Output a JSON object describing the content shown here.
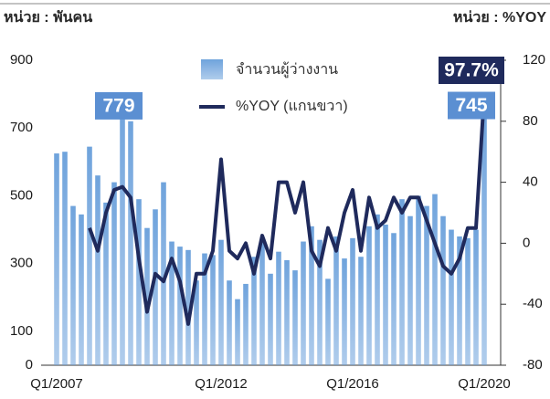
{
  "chart_data": {
    "type": "bar-line",
    "y_label": "หน่วย : พันคน",
    "y2_label": "หน่วย : %YOY",
    "categories": [
      "Q1/2007",
      null,
      null,
      null,
      null,
      null,
      null,
      null,
      null,
      null,
      null,
      null,
      null,
      null,
      null,
      null,
      null,
      null,
      null,
      null,
      "Q1/2012",
      null,
      null,
      null,
      null,
      null,
      null,
      null,
      null,
      null,
      null,
      null,
      null,
      null,
      null,
      null,
      "Q1/2016",
      null,
      null,
      null,
      null,
      null,
      null,
      null,
      null,
      null,
      null,
      null,
      null,
      null,
      null,
      null,
      "Q1/2020"
    ],
    "series": [
      {
        "name": "จำนวนผู้ว่างงาน",
        "type": "bar",
        "color": "#6fa3dc",
        "axis": "y",
        "values": [
          625,
          630,
          470,
          445,
          645,
          560,
          480,
          540,
          779,
          720,
          490,
          405,
          460,
          540,
          365,
          350,
          340,
          250,
          330,
          325,
          370,
          250,
          195,
          240,
          320,
          370,
          270,
          335,
          310,
          280,
          365,
          410,
          370,
          255,
          380,
          315,
          375,
          320,
          410,
          445,
          415,
          390,
          490,
          440,
          500,
          470,
          505,
          440,
          400,
          380,
          375,
          400,
          745
        ],
        "value_labels": [
          null,
          null,
          null,
          null,
          null,
          null,
          null,
          null,
          "779",
          null,
          null,
          null,
          null,
          null,
          null,
          null,
          null,
          null,
          null,
          null,
          null,
          null,
          null,
          null,
          null,
          null,
          null,
          null,
          null,
          null,
          null,
          null,
          null,
          null,
          null,
          null,
          null,
          null,
          null,
          null,
          null,
          null,
          null,
          null,
          null,
          null,
          null,
          null,
          null,
          null,
          null,
          null,
          "745"
        ]
      },
      {
        "name": "%YOY (แกนขวา)",
        "type": "line",
        "color": "#1f2a5c",
        "axis": "y2",
        "values": [
          null,
          null,
          null,
          null,
          10,
          -5,
          20,
          35,
          37,
          30,
          -10,
          -45,
          -20,
          -25,
          -10,
          -25,
          -53,
          -20,
          -20,
          -5,
          55,
          -5,
          -10,
          0,
          -20,
          5,
          -10,
          40,
          40,
          20,
          40,
          -5,
          -15,
          10,
          -5,
          20,
          35,
          -5,
          30,
          10,
          15,
          30,
          20,
          30,
          30,
          15,
          0,
          -15,
          -20,
          -10,
          10,
          10,
          97.7
        ],
        "value_labels": [
          null,
          null,
          null,
          null,
          null,
          null,
          null,
          null,
          null,
          null,
          null,
          null,
          null,
          null,
          null,
          null,
          null,
          null,
          null,
          null,
          null,
          null,
          null,
          null,
          null,
          null,
          null,
          null,
          null,
          null,
          null,
          null,
          null,
          null,
          null,
          null,
          null,
          null,
          null,
          null,
          null,
          null,
          null,
          null,
          null,
          null,
          null,
          null,
          null,
          null,
          null,
          null,
          "97.7%"
        ]
      }
    ],
    "ylim": [
      0,
      900
    ],
    "yticks": [
      0,
      100,
      300,
      500,
      700,
      900
    ],
    "y2lim": [
      -80,
      120
    ],
    "y2ticks": [
      -80,
      -40,
      0,
      40,
      80,
      120
    ]
  }
}
